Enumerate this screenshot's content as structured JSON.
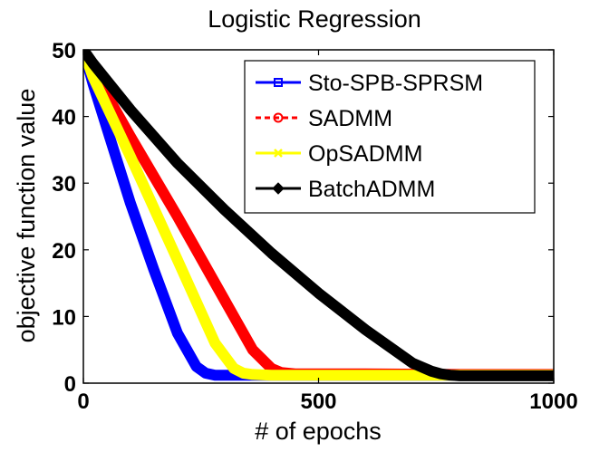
{
  "chart_data": {
    "type": "line",
    "title": "Logistic Regression",
    "xlabel": "# of epochs",
    "ylabel": "objective function value",
    "xlim": [
      0,
      1000
    ],
    "ylim": [
      0,
      50
    ],
    "xticks": [
      0,
      500,
      1000
    ],
    "yticks": [
      0,
      10,
      20,
      30,
      40,
      50
    ],
    "legend_position": "top-right",
    "series": [
      {
        "name": "Sto-SPB-SPRSM",
        "color": "#0000ff",
        "line_style": "solid",
        "marker": "square",
        "x": [
          0,
          20,
          60,
          100,
          150,
          200,
          240,
          260,
          280,
          300,
          400,
          600,
          800,
          1000
        ],
        "y": [
          50,
          45,
          36,
          27,
          17,
          7.5,
          2.5,
          1.5,
          1.2,
          1.2,
          1.2,
          1.2,
          1.2,
          1.2
        ]
      },
      {
        "name": "SADMM",
        "color": "#ff0000",
        "line_style": "dashed",
        "marker": "circle",
        "x": [
          0,
          20,
          100,
          200,
          300,
          360,
          400,
          420,
          450,
          500,
          600,
          800,
          1000
        ],
        "y": [
          50,
          47,
          37,
          25,
          12.5,
          5,
          2.2,
          1.6,
          1.4,
          1.4,
          1.4,
          1.3,
          1.3
        ]
      },
      {
        "name": "OpSADMM",
        "color": "#ffff00",
        "line_style": "solid",
        "marker": "x",
        "x": [
          0,
          20,
          100,
          200,
          280,
          320,
          340,
          360,
          400,
          600,
          800,
          1000
        ],
        "y": [
          50,
          46,
          34,
          18.5,
          6,
          2.2,
          1.5,
          1.3,
          1.2,
          1.2,
          1.2,
          1.2
        ]
      },
      {
        "name": "BatchADMM",
        "color": "#000000",
        "line_style": "solid",
        "marker": "diamond",
        "x": [
          0,
          20,
          100,
          200,
          300,
          400,
          500,
          600,
          700,
          740,
          760,
          780,
          800,
          900,
          1000
        ],
        "y": [
          50,
          48,
          41,
          33,
          26,
          19.5,
          13.5,
          8,
          3,
          1.8,
          1.4,
          1.2,
          1.1,
          1.1,
          1.1
        ]
      }
    ]
  }
}
